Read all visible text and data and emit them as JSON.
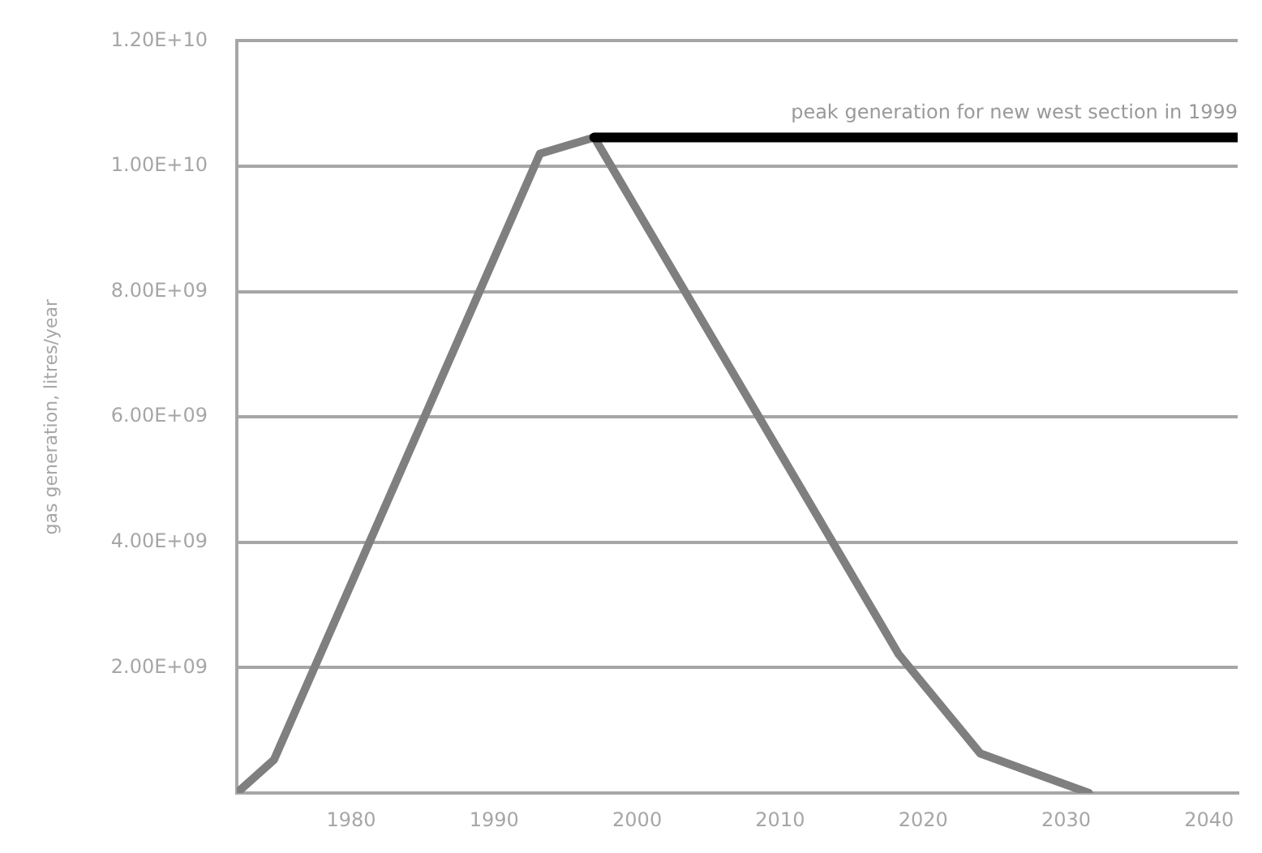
{
  "chart_data": {
    "type": "line",
    "ylabel": "gas generation, litres/year",
    "xlim": [
      1972,
      2042
    ],
    "xticks": [
      1980,
      1990,
      2000,
      2010,
      2020,
      2030,
      2040
    ],
    "ylim": [
      0,
      12000000000.0
    ],
    "yticks": [
      {
        "value": 0,
        "label": null
      },
      {
        "value": 2000000000.0,
        "label": "2.00E+09"
      },
      {
        "value": 4000000000.0,
        "label": "4.00E+09"
      },
      {
        "value": 6000000000.0,
        "label": "6.00E+09"
      },
      {
        "value": 8000000000.0,
        "label": "8.00E+09"
      },
      {
        "value": 10000000000.0,
        "label": "1.00E+10"
      },
      {
        "value": 12000000000.0,
        "label": "1.20E+10"
      }
    ],
    "grid": "y",
    "legend": false,
    "marker": "none",
    "line_style": "solid",
    "series": [
      {
        "color": "#7f7f7f",
        "x": [
          1972,
          1974.6,
          1993.2,
          1997.0,
          2018.3,
          2024.0,
          2031.6
        ],
        "values": [
          0,
          530000000.0,
          10200000000.0,
          10460000000.0,
          2210000000.0,
          630000000.0,
          0
        ]
      },
      {
        "color": "#000000",
        "x": [
          1997.0,
          2042
        ],
        "values": [
          10460000000.0,
          10460000000.0
        ]
      }
    ],
    "annotations": [
      {
        "text": "peak generation for new west section in 1999",
        "x": 2042,
        "y": 10460000000.0
      }
    ]
  }
}
